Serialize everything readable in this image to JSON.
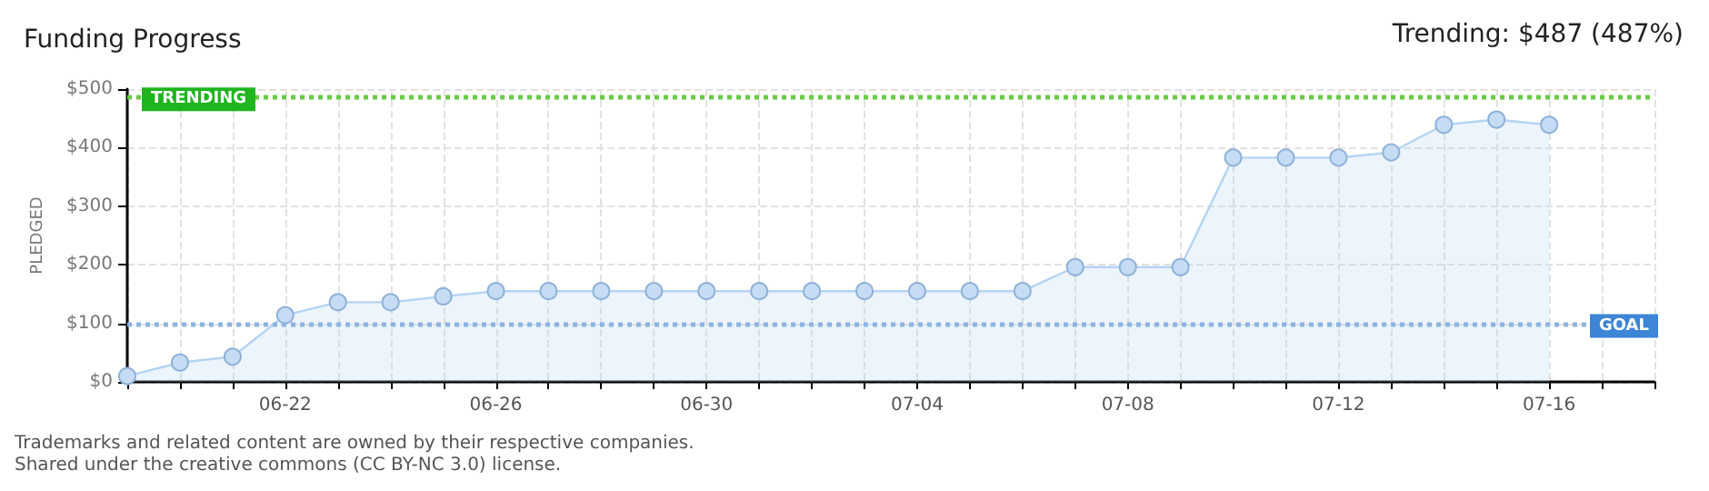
{
  "chart_data": {
    "type": "area",
    "title": "Funding Progress",
    "ylabel": "PLEDGED",
    "x": [
      "--06-19",
      "--06-20",
      "--06-21",
      "--06-22",
      "--06-23",
      "--06-24",
      "--06-25",
      "--06-26",
      "--06-27",
      "--06-28",
      "--06-29",
      "--06-30",
      "--07-01",
      "--07-02",
      "--07-03",
      "--07-04",
      "--07-05",
      "--07-06",
      "--07-07",
      "--07-08",
      "--07-09",
      "--07-10",
      "--07-11",
      "--07-12",
      "--07-13",
      "--07-14",
      "--07-15",
      "--07-16"
    ],
    "series": [
      {
        "color": "#b5d3f3",
        "values": [
          10,
          33,
          43,
          114,
          136,
          136,
          146,
          155,
          155,
          155,
          155,
          155,
          155,
          155,
          155,
          155,
          155,
          155,
          196,
          196,
          196,
          383,
          383,
          383,
          392,
          439,
          448,
          439
        ]
      }
    ],
    "xlim": [
      "--06-19",
      "--07-18"
    ],
    "xticks": [
      {
        "value": "--06-19",
        "label": null
      },
      {
        "value": "--06-20",
        "label": null
      },
      {
        "value": "--06-21",
        "label": null
      },
      {
        "value": "--06-22",
        "label": "06-22"
      },
      {
        "value": "--06-23",
        "label": null
      },
      {
        "value": "--06-24",
        "label": null
      },
      {
        "value": "--06-25",
        "label": null
      },
      {
        "value": "--06-26",
        "label": "06-26"
      },
      {
        "value": "--06-27",
        "label": null
      },
      {
        "value": "--06-28",
        "label": null
      },
      {
        "value": "--06-29",
        "label": null
      },
      {
        "value": "--06-30",
        "label": "06-30"
      },
      {
        "value": "--07-01",
        "label": null
      },
      {
        "value": "--07-02",
        "label": null
      },
      {
        "value": "--07-03",
        "label": null
      },
      {
        "value": "--07-04",
        "label": "07-04"
      },
      {
        "value": "--07-05",
        "label": null
      },
      {
        "value": "--07-06",
        "label": null
      },
      {
        "value": "--07-07",
        "label": null
      },
      {
        "value": "--07-08",
        "label": "07-08"
      },
      {
        "value": "--07-09",
        "label": null
      },
      {
        "value": "--07-10",
        "label": null
      },
      {
        "value": "--07-11",
        "label": null
      },
      {
        "value": "--07-12",
        "label": "07-12"
      },
      {
        "value": "--07-13",
        "label": null
      },
      {
        "value": "--07-14",
        "label": null
      },
      {
        "value": "--07-15",
        "label": null
      },
      {
        "value": "--07-16",
        "label": "07-16"
      },
      {
        "value": "--07-17",
        "label": null
      },
      {
        "value": "--07-18",
        "label": null
      }
    ],
    "ylim": [
      0,
      500
    ],
    "yticks": [
      {
        "value": 0,
        "label": "$0"
      },
      {
        "value": 100,
        "label": "$100"
      },
      {
        "value": 200,
        "label": "$200"
      },
      {
        "value": 300,
        "label": "$300"
      },
      {
        "value": 400,
        "label": "$400"
      },
      {
        "value": 500,
        "label": "$500"
      }
    ],
    "ref_lines": [
      {
        "axis": "y",
        "value": 487,
        "label": "TRENDING",
        "color": "#66cc44",
        "line_style": "dotted"
      },
      {
        "axis": "y",
        "value": 100,
        "label": "GOAL",
        "color": "#8db4e2",
        "line_style": "dotted"
      }
    ],
    "annotations": [
      "Trending: $487 (487%)",
      "Trademarks and related content are owned by their respective companies.",
      "Shared under the creative commons (CC BY-NC 3.0) license."
    ],
    "grid": true,
    "marker": "circle",
    "line_style": "solid"
  }
}
